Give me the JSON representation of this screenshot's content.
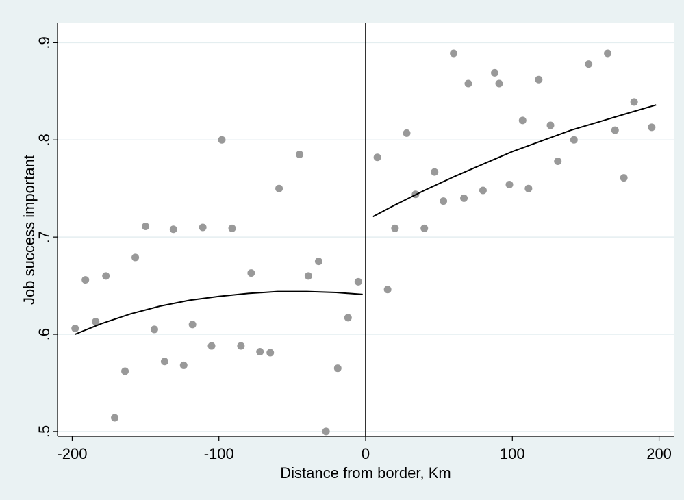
{
  "chart_data": {
    "type": "scatter",
    "title": "",
    "xlabel": "Distance from border, Km",
    "ylabel": "Job success important",
    "xlim": [
      -210,
      210
    ],
    "ylim": [
      0.495,
      0.92
    ],
    "x_ticks": [
      -200,
      -100,
      0,
      100,
      200
    ],
    "x_tick_labels": [
      "-200",
      "-100",
      "0",
      "100",
      "200"
    ],
    "y_ticks": [
      0.5,
      0.6,
      0.7,
      0.8,
      0.9
    ],
    "y_tick_labels": [
      ".5",
      ".6",
      ".7",
      ".8",
      ".9"
    ],
    "grid": true,
    "border_line_x": 0,
    "colors": {
      "background": "#eaf2f3",
      "plot_area": "#ffffff",
      "points": "#999999",
      "fit_line": "#000000",
      "grid": "#e4eef0"
    },
    "series": [
      {
        "kind": "points",
        "points": [
          [
            -198,
            0.606
          ],
          [
            -191,
            0.656
          ],
          [
            -184,
            0.613
          ],
          [
            -177,
            0.66
          ],
          [
            -171,
            0.514
          ],
          [
            -164,
            0.562
          ],
          [
            -157,
            0.679
          ],
          [
            -150,
            0.711
          ],
          [
            -144,
            0.605
          ],
          [
            -137,
            0.572
          ],
          [
            -131,
            0.708
          ],
          [
            -124,
            0.568
          ],
          [
            -118,
            0.61
          ],
          [
            -111,
            0.71
          ],
          [
            -105,
            0.588
          ],
          [
            -98,
            0.8
          ],
          [
            -91,
            0.709
          ],
          [
            -85,
            0.588
          ],
          [
            -78,
            0.663
          ],
          [
            -72,
            0.582
          ],
          [
            -65,
            0.581
          ],
          [
            -59,
            0.75
          ],
          [
            -45,
            0.785
          ],
          [
            -39,
            0.66
          ],
          [
            -32,
            0.675
          ],
          [
            -27,
            0.5
          ],
          [
            -19,
            0.565
          ],
          [
            -12,
            0.617
          ],
          [
            -5,
            0.654
          ],
          [
            8,
            0.782
          ],
          [
            15,
            0.646
          ],
          [
            20,
            0.709
          ],
          [
            28,
            0.807
          ],
          [
            34,
            0.744
          ],
          [
            40,
            0.709
          ],
          [
            47,
            0.767
          ],
          [
            53,
            0.737
          ],
          [
            60,
            0.889
          ],
          [
            67,
            0.74
          ],
          [
            70,
            0.858
          ],
          [
            80,
            0.748
          ],
          [
            88,
            0.869
          ],
          [
            91,
            0.858
          ],
          [
            98,
            0.754
          ],
          [
            107,
            0.82
          ],
          [
            111,
            0.75
          ],
          [
            118,
            0.862
          ],
          [
            126,
            0.815
          ],
          [
            131,
            0.778
          ],
          [
            142,
            0.8
          ],
          [
            152,
            0.878
          ],
          [
            165,
            0.889
          ],
          [
            170,
            0.81
          ],
          [
            176,
            0.761
          ],
          [
            183,
            0.839
          ],
          [
            195,
            0.813
          ]
        ]
      },
      {
        "kind": "fit-left",
        "points": [
          [
            -198,
            0.6
          ],
          [
            -180,
            0.611
          ],
          [
            -160,
            0.621
          ],
          [
            -140,
            0.629
          ],
          [
            -120,
            0.635
          ],
          [
            -100,
            0.639
          ],
          [
            -80,
            0.642
          ],
          [
            -60,
            0.644
          ],
          [
            -40,
            0.644
          ],
          [
            -20,
            0.643
          ],
          [
            -2,
            0.641
          ]
        ]
      },
      {
        "kind": "fit-right",
        "points": [
          [
            5,
            0.721
          ],
          [
            20,
            0.733
          ],
          [
            40,
            0.748
          ],
          [
            60,
            0.762
          ],
          [
            80,
            0.775
          ],
          [
            100,
            0.788
          ],
          [
            120,
            0.799
          ],
          [
            140,
            0.81
          ],
          [
            160,
            0.819
          ],
          [
            180,
            0.828
          ],
          [
            198,
            0.836
          ]
        ]
      }
    ]
  }
}
